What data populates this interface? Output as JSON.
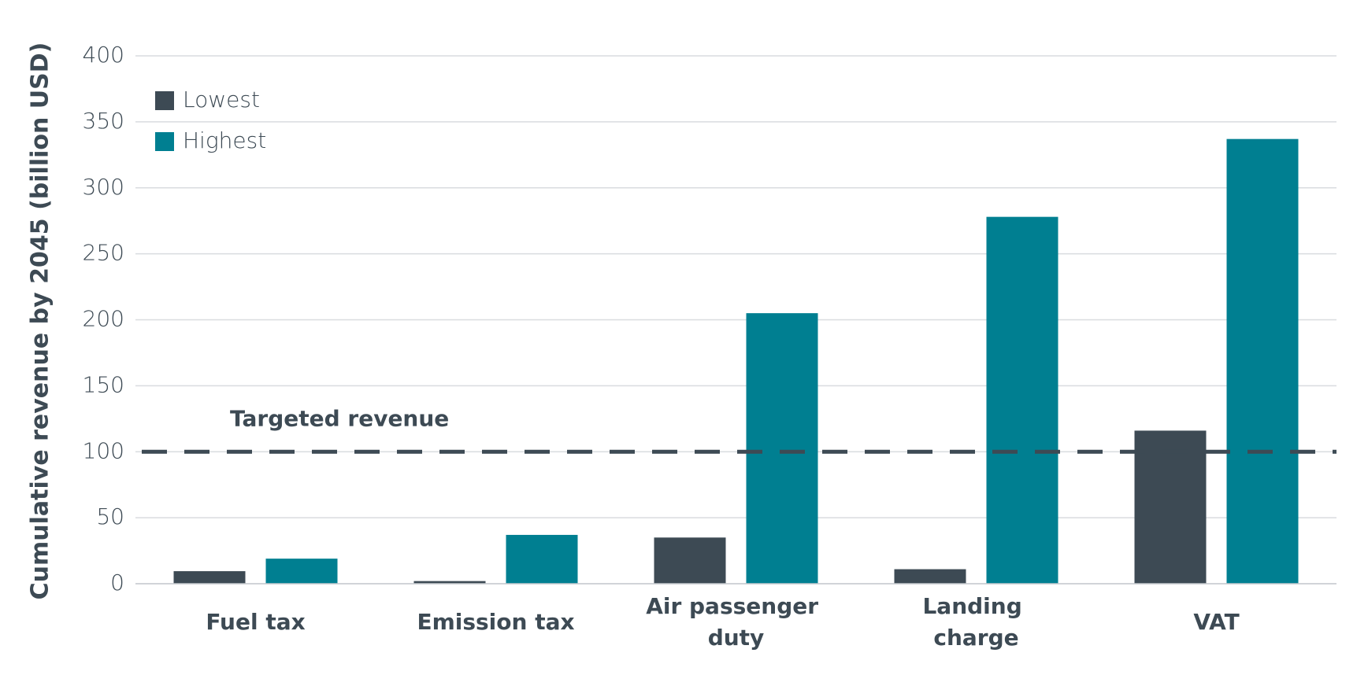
{
  "chart_data": {
    "type": "bar",
    "y_label": "Cumulative revenue by 2045 (billion USD)",
    "categories": [
      "Fuel tax",
      "Emission tax",
      "Air passenger duty",
      "Landing charge",
      "VAT"
    ],
    "series": [
      {
        "name": "Lowest",
        "color": "#3d4a54",
        "values": [
          9.5,
          2,
          35,
          11,
          116
        ]
      },
      {
        "name": "Highest",
        "color": "#007f91",
        "values": [
          19,
          37,
          205,
          278,
          337
        ]
      }
    ],
    "reference_line": {
      "value": 100,
      "label": "Targeted revenue"
    },
    "ylim": [
      0,
      400
    ],
    "yticks": [
      0,
      50,
      100,
      150,
      200,
      250,
      300,
      350,
      400
    ],
    "grid": true,
    "legend": "top-left"
  }
}
